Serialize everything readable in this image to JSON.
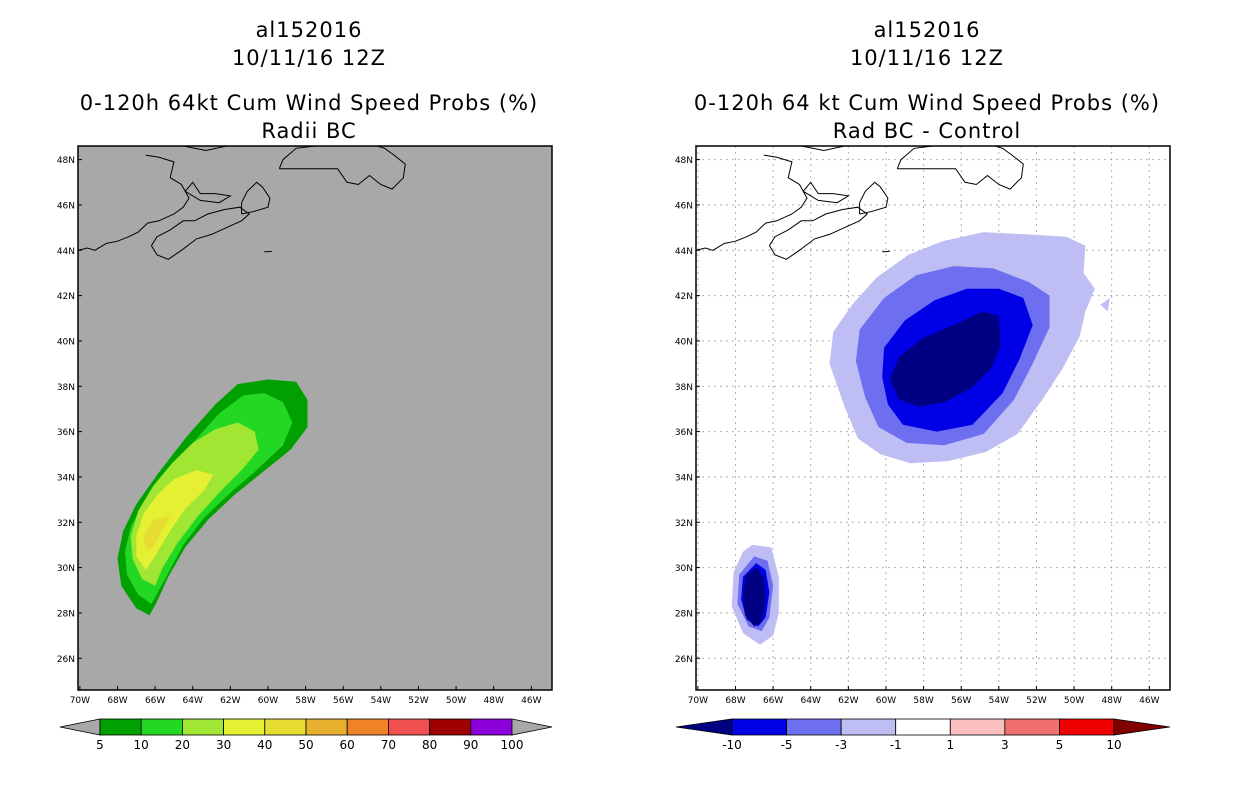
{
  "left_panel": {
    "title_line1": "al152016",
    "title_line2": "10/11/16 12Z",
    "title_line3": "0-120h 64kt Cum Wind Speed Probs (%)",
    "title_line4": "Radii BC",
    "background_color": "#a8a8a8",
    "colorbar": {
      "labels": [
        "5",
        "10",
        "20",
        "30",
        "40",
        "50",
        "60",
        "70",
        "80",
        "90",
        "100"
      ],
      "colors": [
        "#00a000",
        "#22d822",
        "#a0e632",
        "#e6f032",
        "#e6dc32",
        "#e6af2d",
        "#f08228",
        "#f05050",
        "#a00000",
        "#8c00dc"
      ],
      "under_color": "#a8a8a8",
      "over_color": "#a8a8a8"
    }
  },
  "right_panel": {
    "title_line1": "al152016",
    "title_line2": "10/11/16 12Z",
    "title_line3": "0-120h 64 kt Cum Wind Speed Probs (%)",
    "title_line4": "Rad BC - Control",
    "background_color": "#ffffff",
    "colorbar": {
      "labels": [
        "-10",
        "-5",
        "-3",
        "-1",
        "1",
        "3",
        "5",
        "10"
      ],
      "colors": [
        "#0000e6",
        "#6e6ef0",
        "#bebef5",
        "#ffffff",
        "#fac0c0",
        "#f07070",
        "#f00000"
      ],
      "under_color": "#000082",
      "over_color": "#800000"
    }
  },
  "axes": {
    "lat_labels": [
      "48N",
      "46N",
      "44N",
      "42N",
      "40N",
      "38N",
      "36N",
      "34N",
      "32N",
      "30N",
      "28N",
      "26N"
    ],
    "lon_labels": [
      "70W",
      "68W",
      "66W",
      "64W",
      "62W",
      "60W",
      "58W",
      "56W",
      "54W",
      "52W",
      "50W",
      "48W",
      "46W"
    ],
    "lat_range": [
      24.6,
      48.6
    ],
    "lon_range": [
      -70.1,
      -44.9
    ]
  }
}
